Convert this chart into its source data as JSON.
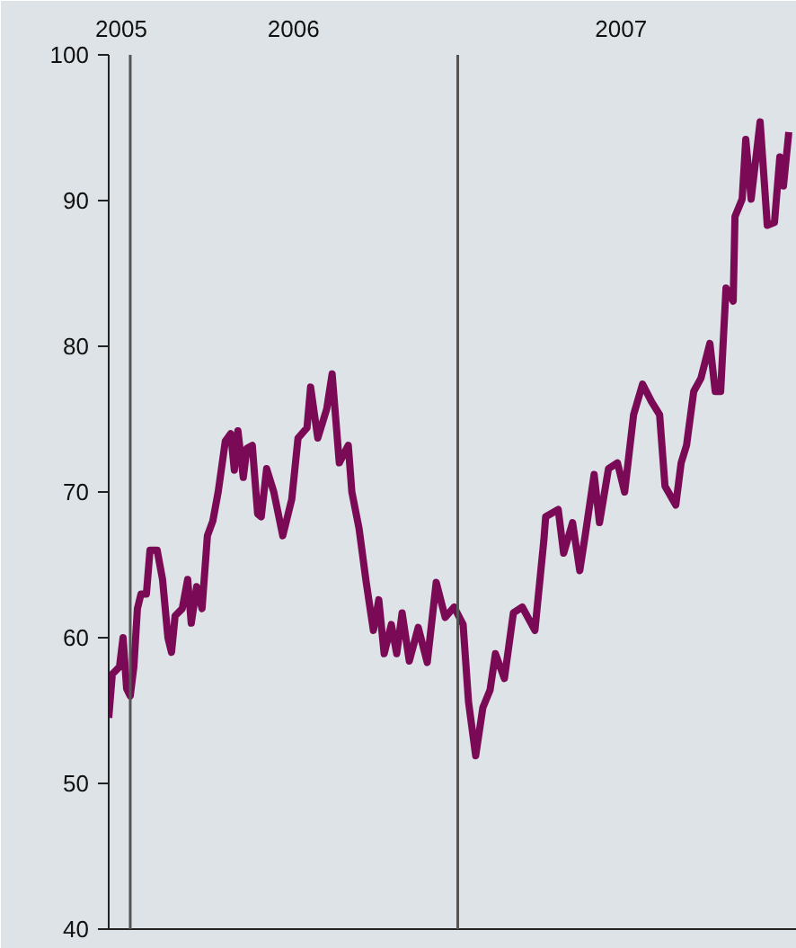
{
  "chart_data": {
    "type": "line",
    "x": [
      "2005-12-08",
      "2005-12-12",
      "2005-12-20",
      "2005-12-24",
      "2005-12-28",
      "2006-01-01",
      "2006-01-05",
      "2006-01-09",
      "2006-01-13",
      "2006-01-19",
      "2006-01-23",
      "2006-01-31",
      "2006-02-06",
      "2006-02-12",
      "2006-02-16",
      "2006-02-20",
      "2006-02-28",
      "2006-03-06",
      "2006-03-10",
      "2006-03-16",
      "2006-03-22",
      "2006-03-28",
      "2006-04-03",
      "2006-04-09",
      "2006-04-17",
      "2006-04-23",
      "2006-04-27",
      "2006-05-01",
      "2006-05-07",
      "2006-05-11",
      "2006-05-17",
      "2006-05-23",
      "2006-05-27",
      "2006-06-02",
      "2006-06-10",
      "2006-06-20",
      "2006-06-30",
      "2006-07-07",
      "2006-07-17",
      "2006-07-21",
      "2006-07-29",
      "2006-08-08",
      "2006-08-14",
      "2006-08-22",
      "2006-09-01",
      "2006-09-05",
      "2006-09-13",
      "2006-09-21",
      "2006-09-29",
      "2006-10-05",
      "2006-10-11",
      "2006-10-19",
      "2006-10-25",
      "2006-10-31",
      "2006-11-08",
      "2006-11-18",
      "2006-11-28",
      "2006-12-08",
      "2006-12-18",
      "2006-12-28",
      "2007-01-07",
      "2007-01-13",
      "2007-01-21",
      "2007-01-29",
      "2007-02-06",
      "2007-02-12",
      "2007-02-22",
      "2007-03-04",
      "2007-03-14",
      "2007-03-28",
      "2007-04-07",
      "2007-04-09",
      "2007-04-23",
      "2007-04-29",
      "2007-05-09",
      "2007-05-17",
      "2007-05-23",
      "2007-06-02",
      "2007-06-08",
      "2007-06-18",
      "2007-06-28",
      "2007-07-06",
      "2007-07-16",
      "2007-07-26",
      "2007-08-05",
      "2007-08-14",
      "2007-08-20",
      "2007-09-01",
      "2007-09-07",
      "2007-09-13",
      "2007-09-21",
      "2007-09-29",
      "2007-10-09",
      "2007-10-15",
      "2007-10-21",
      "2007-10-27",
      "2007-11-04",
      "2007-11-06",
      "2007-11-14",
      "2007-11-18",
      "2007-11-24",
      "2007-12-04",
      "2007-12-12",
      "2007-12-20",
      "2007-12-26",
      "2007-12-30",
      "2008-01-05"
    ],
    "series": [
      {
        "color": "#7a0a55",
        "values": [
          54.5,
          57.5,
          58,
          60,
          56.5,
          56,
          58,
          62,
          63,
          63,
          66,
          66,
          64,
          60,
          59,
          61.5,
          62,
          64,
          61,
          63.5,
          62,
          67,
          68,
          70,
          73.5,
          74,
          71.5,
          74.2,
          71,
          73,
          73.2,
          68.5,
          68.3,
          71.6,
          70,
          67,
          69.5,
          73.7,
          74.4,
          77.2,
          73.7,
          75.7,
          78.1,
          72,
          73.2,
          70,
          67.5,
          63.8,
          60.5,
          62.6,
          58.9,
          60.9,
          58.9,
          61.7,
          58.4,
          60.7,
          58.3,
          63.8,
          61.4,
          62.1,
          60.9,
          55.6,
          51.9,
          55.2,
          56.4,
          58.9,
          57.2,
          61.7,
          62.1,
          60.5,
          66.7,
          68.3,
          68.8,
          65.8,
          67.9,
          64.6,
          67,
          71.2,
          67.9,
          71.6,
          72,
          70,
          75.3,
          77.4,
          76.2,
          75.3,
          70.4,
          69.1,
          72,
          73.2,
          76.9,
          77.8,
          80.2,
          76.9,
          76.9,
          84,
          83.1,
          88.9,
          90.1,
          94.2,
          90.1,
          95.4,
          88.3,
          88.5,
          93,
          91,
          94.7
        ]
      }
    ],
    "xlim": [
      "2005-12-08",
      "2008-01-14"
    ],
    "xticks": [
      {
        "value": "2005-12-22",
        "label": "2005"
      },
      {
        "value": "2006-07-02",
        "label": "2006"
      },
      {
        "value": "2007-07-02",
        "label": "2007"
      }
    ],
    "ylim": [
      40,
      100
    ],
    "yticks": [
      40,
      50,
      60,
      70,
      80,
      90,
      100
    ],
    "ref_lines": [
      {
        "axis": "x",
        "value": "2006-01-01",
        "label": null,
        "color": "#555555"
      },
      {
        "axis": "x",
        "value": "2007-01-01",
        "label": null,
        "color": "#555555"
      }
    ],
    "grid": false,
    "marker": "none",
    "line_style": "solid"
  }
}
